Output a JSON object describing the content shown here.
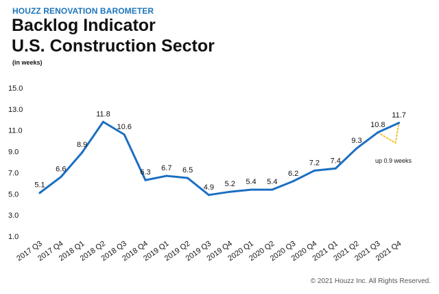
{
  "header": {
    "brand": "HOUZZ RENOVATION BAROMETER",
    "title_line1": "Backlog Indicator",
    "title_line2": "U.S. Construction Sector",
    "subtitle": "(in weeks)"
  },
  "footer": {
    "copyright": "© 2021 Houzz Inc. All Rights Reserved."
  },
  "colors": {
    "line": "#1b6ec2",
    "brand": "#1b75bb",
    "annotation": "#f2c230"
  },
  "chart_data": {
    "type": "line",
    "title": "Backlog Indicator U.S. Construction Sector",
    "ylabel": "(in weeks)",
    "xlabel": "",
    "ylim": [
      1.0,
      15.0
    ],
    "yticks": [
      "15.0",
      "13.0",
      "11.0",
      "9.0",
      "7.0",
      "5.0",
      "3.0",
      "1.0"
    ],
    "ytick_values": [
      15,
      13,
      11,
      9,
      7,
      5,
      3,
      1
    ],
    "categories": [
      "2017 Q3",
      "2017 Q4",
      "2018 Q1",
      "2018 Q2",
      "2018 Q3",
      "2018 Q4",
      "2019 Q1",
      "2019 Q2",
      "2019 Q3",
      "2019 Q4",
      "2020 Q1",
      "2020 Q2",
      "2020 Q3",
      "2020 Q4",
      "2021 Q1",
      "2021 Q2",
      "2021 Q3",
      "2021 Q4"
    ],
    "values": [
      5.1,
      6.6,
      8.9,
      11.8,
      10.6,
      6.3,
      6.7,
      6.5,
      4.9,
      5.2,
      5.4,
      5.4,
      6.2,
      7.2,
      7.4,
      9.3,
      10.8,
      11.7
    ],
    "data_labels": [
      "5.1",
      "6.6",
      "8.9",
      "11.8",
      "10.6",
      "6.3",
      "6.7",
      "6.5",
      "4.9",
      "5.2",
      "5.4",
      "5.4",
      "6.2",
      "7.2",
      "7.4",
      "9.3",
      "10.8",
      "11.7"
    ],
    "grid": false,
    "legend": "none",
    "annotation": {
      "text": "up 0.9 weeks",
      "from_category": "2021 Q3",
      "to_category": "2021 Q4",
      "change": 0.9
    }
  }
}
